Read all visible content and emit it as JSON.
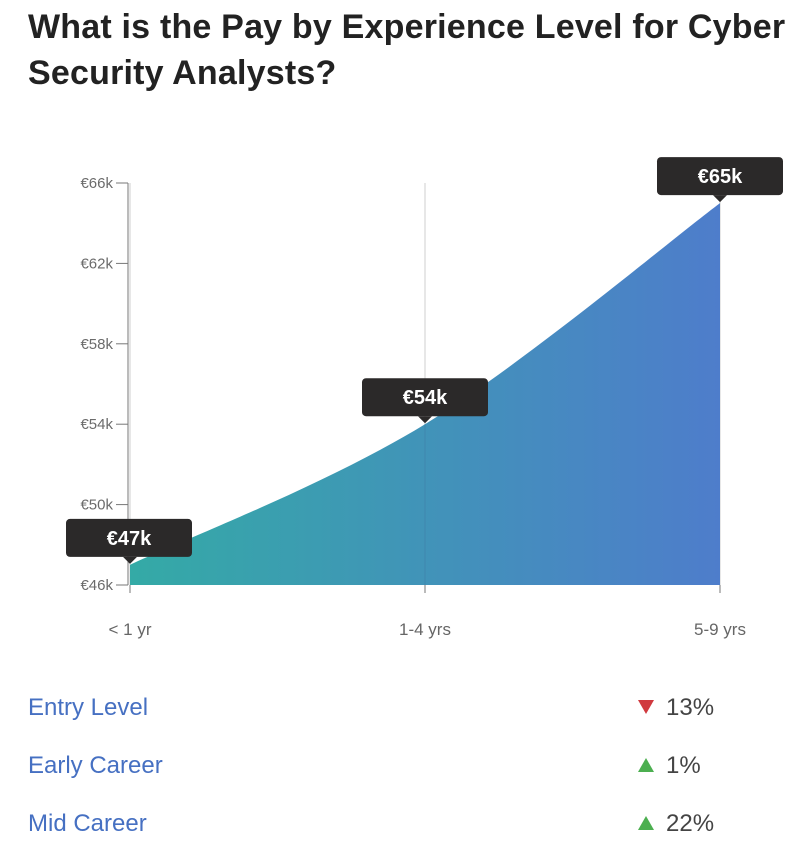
{
  "page": {
    "title": "What is the Pay by Experience Level for Cyber Security Analysts?"
  },
  "chart_data": {
    "type": "area",
    "title": "",
    "xlabel": "",
    "ylabel": "",
    "categories": [
      "< 1 yr",
      "1-4 yrs",
      "5-9 yrs"
    ],
    "values": [
      47,
      54,
      65
    ],
    "value_labels": [
      "€47k",
      "€54k",
      "€65k"
    ],
    "y_ticks": [
      {
        "value": 46,
        "label": "€46k"
      },
      {
        "value": 50,
        "label": "€50k"
      },
      {
        "value": 54,
        "label": "€54k"
      },
      {
        "value": 58,
        "label": "€58k"
      },
      {
        "value": 62,
        "label": "€62k"
      },
      {
        "value": 66,
        "label": "€66k"
      }
    ],
    "ylim": [
      46,
      66
    ],
    "grid": "vertical lines at categories",
    "fill_gradient": [
      "#34aaa6",
      "#4e7dcb"
    ]
  },
  "legend": {
    "items": [
      {
        "label": "Entry Level",
        "direction": "down",
        "change": "13%",
        "color": "#d0393e"
      },
      {
        "label": "Early Career",
        "direction": "up",
        "change": "1%",
        "color": "#4caf50"
      },
      {
        "label": "Mid Career",
        "direction": "up",
        "change": "22%",
        "color": "#4caf50"
      }
    ]
  }
}
